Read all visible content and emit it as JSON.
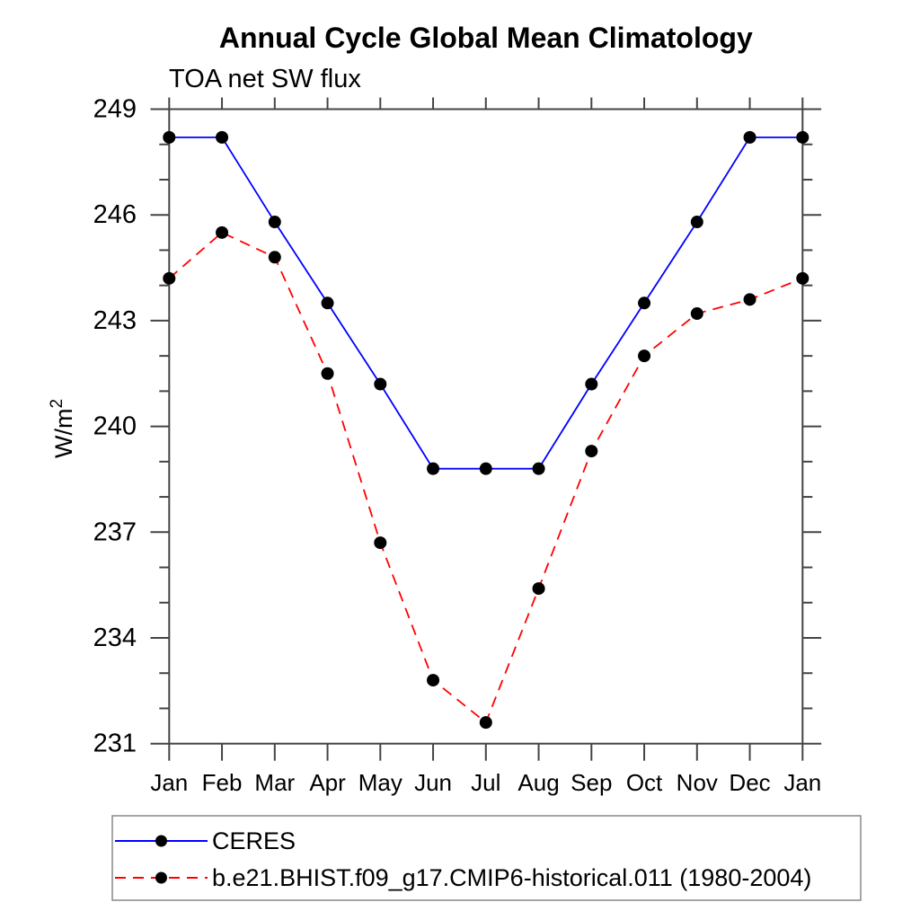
{
  "colors": {
    "ceres_line": "#0000ff",
    "model_line": "#ff0000",
    "marker": "#000000",
    "frame": "#444444",
    "legend_border": "#888888",
    "text": "#000000"
  },
  "chart_data": {
    "type": "line",
    "title": "Annual Cycle Global Mean Climatology",
    "subtitle": "TOA net SW flux",
    "xlabel": "",
    "ylabel": "W/m²",
    "x_ticklabels": [
      "Jan",
      "Feb",
      "Mar",
      "Apr",
      "May",
      "Jun",
      "Jul",
      "Aug",
      "Sep",
      "Oct",
      "Nov",
      "Dec",
      "Jan"
    ],
    "y_ticks": [
      231,
      234,
      237,
      240,
      243,
      246,
      249
    ],
    "y_minor_step": 1,
    "ylim": [
      231,
      249
    ],
    "grid": false,
    "legend_position": "bottom-left",
    "series": [
      {
        "name": "CERES",
        "color": "#0000ff",
        "style": "solid",
        "marker": "circle",
        "values": [
          248.2,
          248.2,
          245.8,
          243.5,
          241.2,
          238.8,
          238.8,
          238.8,
          241.2,
          243.5,
          245.8,
          248.2,
          248.2
        ]
      },
      {
        "name": "b.e21.BHIST.f09_g17.CMIP6-historical.011 (1980-2004)",
        "color": "#ff0000",
        "style": "dashed",
        "marker": "circle",
        "values": [
          244.2,
          245.5,
          244.8,
          241.5,
          236.7,
          232.8,
          231.6,
          235.4,
          239.3,
          242.0,
          243.2,
          243.6,
          244.2
        ]
      }
    ]
  }
}
